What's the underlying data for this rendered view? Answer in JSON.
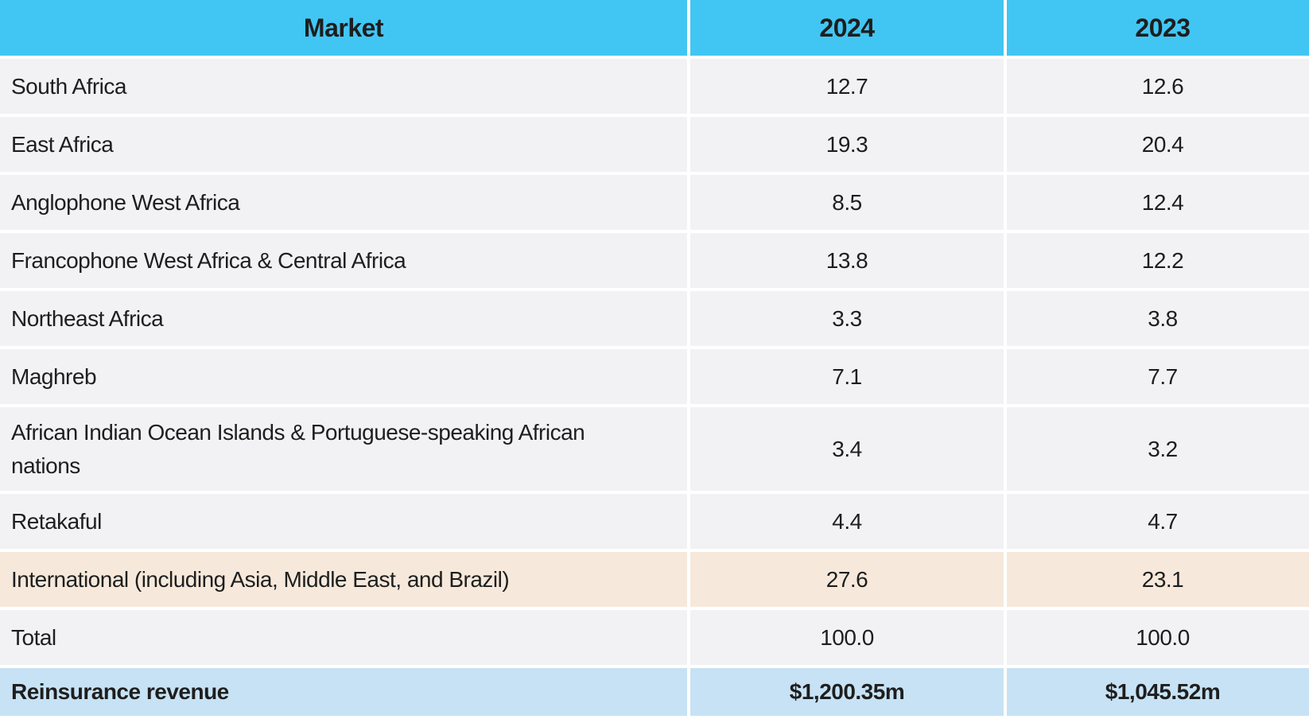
{
  "table": {
    "headers": [
      "Market",
      "2024",
      "2023"
    ],
    "rows": [
      {
        "market": "South Africa",
        "y2024": "12.7",
        "y2023": "12.6"
      },
      {
        "market": "East Africa",
        "y2024": "19.3",
        "y2023": "20.4"
      },
      {
        "market": "Anglophone West Africa",
        "y2024": "8.5",
        "y2023": "12.4"
      },
      {
        "market": "Francophone West Africa & Central Africa",
        "y2024": "13.8",
        "y2023": "12.2"
      },
      {
        "market": "Northeast Africa",
        "y2024": "3.3",
        "y2023": "3.8"
      },
      {
        "market": "Maghreb",
        "y2024": "7.1",
        "y2023": "7.7"
      },
      {
        "market": "African Indian Ocean Islands & Portuguese-speaking African nations",
        "y2024": "3.4",
        "y2023": "3.2"
      },
      {
        "market": "Retakaful",
        "y2024": "4.4",
        "y2023": "4.7"
      },
      {
        "market": "International (including Asia, Middle East, and Brazil)",
        "y2024": "27.6",
        "y2023": "23.1"
      },
      {
        "market": "Total",
        "y2024": "100.0",
        "y2023": "100.0"
      },
      {
        "market": "Reinsurance revenue",
        "y2024": "$1,200.35m",
        "y2023": "$1,045.52m"
      }
    ]
  },
  "colors": {
    "header": "#41c6f3",
    "row": "#f2f2f4",
    "highlight": "#f6e9db",
    "revenue": "#c7e2f4"
  }
}
